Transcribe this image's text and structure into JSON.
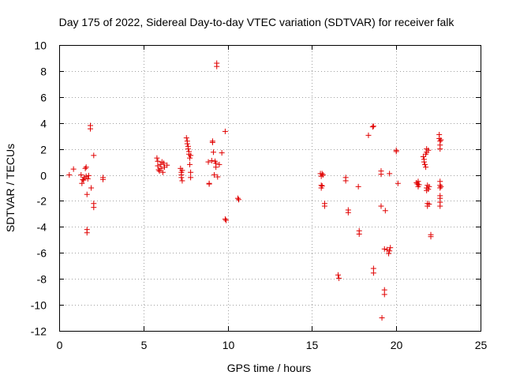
{
  "chart_data": {
    "type": "scatter",
    "title": "Day 175 of 2022, Sidereal Day-to-day VTEC variation (SDTVAR) for receiver falk",
    "xlabel": "GPS time / hours",
    "ylabel": "SDTVAR / TECUs",
    "xlim": [
      0,
      25
    ],
    "ylim": [
      -12,
      10
    ],
    "xticks": [
      0,
      5,
      10,
      15,
      20,
      25
    ],
    "yticks": [
      -12,
      -10,
      -8,
      -6,
      -4,
      -2,
      0,
      2,
      4,
      6,
      8,
      10
    ],
    "grid": true,
    "marker": "plus",
    "color": "#e00000",
    "series": [
      {
        "name": "SDTVAR",
        "points": [
          [
            0.6,
            0.0
          ],
          [
            0.85,
            0.45
          ],
          [
            1.3,
            0.0
          ],
          [
            1.35,
            -0.65
          ],
          [
            1.4,
            -0.35
          ],
          [
            1.45,
            -0.4
          ],
          [
            1.5,
            -0.2
          ],
          [
            1.55,
            0.5
          ],
          [
            1.6,
            -0.1
          ],
          [
            1.6,
            0.6
          ],
          [
            1.65,
            -1.5
          ],
          [
            1.65,
            -4.2
          ],
          [
            1.65,
            -4.45
          ],
          [
            1.7,
            -0.3
          ],
          [
            1.75,
            -0.05
          ],
          [
            1.85,
            3.8
          ],
          [
            1.85,
            3.55
          ],
          [
            1.9,
            -1.0
          ],
          [
            2.05,
            1.5
          ],
          [
            2.05,
            -2.2
          ],
          [
            2.05,
            -2.5
          ],
          [
            2.6,
            -0.2
          ],
          [
            2.6,
            -0.35
          ],
          [
            5.8,
            1.3
          ],
          [
            5.85,
            1.05
          ],
          [
            5.85,
            0.7
          ],
          [
            5.9,
            0.4
          ],
          [
            5.95,
            0.3
          ],
          [
            6.0,
            0.8
          ],
          [
            6.05,
            0.5
          ],
          [
            6.1,
            1.0
          ],
          [
            6.15,
            0.2
          ],
          [
            6.2,
            0.9
          ],
          [
            6.25,
            0.6
          ],
          [
            6.4,
            0.75
          ],
          [
            7.2,
            0.5
          ],
          [
            7.25,
            0.2
          ],
          [
            7.25,
            0.0
          ],
          [
            7.25,
            -0.2
          ],
          [
            7.3,
            -0.45
          ],
          [
            7.3,
            0.35
          ],
          [
            7.55,
            2.85
          ],
          [
            7.6,
            2.6
          ],
          [
            7.6,
            2.4
          ],
          [
            7.65,
            2.2
          ],
          [
            7.65,
            2.0
          ],
          [
            7.7,
            1.8
          ],
          [
            7.7,
            1.6
          ],
          [
            7.75,
            1.3
          ],
          [
            7.75,
            0.8
          ],
          [
            7.8,
            1.5
          ],
          [
            7.8,
            0.2
          ],
          [
            7.8,
            -0.2
          ],
          [
            8.85,
            1.0
          ],
          [
            8.9,
            -0.65
          ],
          [
            8.9,
            -0.7
          ],
          [
            9.05,
            1.1
          ],
          [
            9.1,
            2.5
          ],
          [
            9.1,
            2.6
          ],
          [
            9.15,
            1.75
          ],
          [
            9.2,
            0.0
          ],
          [
            9.25,
            1.05
          ],
          [
            9.3,
            0.9
          ],
          [
            9.3,
            0.6
          ],
          [
            9.35,
            8.6
          ],
          [
            9.35,
            8.35
          ],
          [
            9.4,
            -0.15
          ],
          [
            9.5,
            0.8
          ],
          [
            9.65,
            1.7
          ],
          [
            9.85,
            3.35
          ],
          [
            9.85,
            -3.4
          ],
          [
            9.9,
            -3.5
          ],
          [
            10.6,
            -1.8
          ],
          [
            10.65,
            -1.9
          ],
          [
            15.5,
            0.1
          ],
          [
            15.55,
            -0.1
          ],
          [
            15.55,
            -0.8
          ],
          [
            15.55,
            -1.0
          ],
          [
            15.6,
            0.1
          ],
          [
            15.6,
            -0.85
          ],
          [
            15.65,
            0.0
          ],
          [
            15.75,
            -2.2
          ],
          [
            15.75,
            -2.4
          ],
          [
            16.55,
            -7.7
          ],
          [
            16.6,
            -7.95
          ],
          [
            17.0,
            -0.2
          ],
          [
            17.0,
            -0.45
          ],
          [
            17.15,
            -2.7
          ],
          [
            17.15,
            -2.9
          ],
          [
            17.75,
            -0.9
          ],
          [
            17.8,
            -4.3
          ],
          [
            17.8,
            -4.55
          ],
          [
            18.35,
            3.05
          ],
          [
            18.6,
            3.7
          ],
          [
            18.65,
            3.75
          ],
          [
            18.65,
            -7.2
          ],
          [
            18.65,
            -7.55
          ],
          [
            19.1,
            0.3
          ],
          [
            19.1,
            0.05
          ],
          [
            19.1,
            -2.4
          ],
          [
            19.15,
            -11.0
          ],
          [
            19.3,
            -5.7
          ],
          [
            19.3,
            -8.85
          ],
          [
            19.3,
            -9.2
          ],
          [
            19.35,
            -2.75
          ],
          [
            19.45,
            -5.75
          ],
          [
            19.55,
            -6.05
          ],
          [
            19.6,
            0.1
          ],
          [
            19.6,
            -5.85
          ],
          [
            19.65,
            -5.6
          ],
          [
            20.0,
            1.9
          ],
          [
            20.0,
            1.8
          ],
          [
            20.1,
            -0.65
          ],
          [
            21.2,
            -0.6
          ],
          [
            21.25,
            -0.7
          ],
          [
            21.3,
            -0.9
          ],
          [
            21.3,
            -0.5
          ],
          [
            21.35,
            -0.75
          ],
          [
            21.6,
            1.4
          ],
          [
            21.65,
            1.2
          ],
          [
            21.65,
            1.0
          ],
          [
            21.7,
            0.8
          ],
          [
            21.75,
            1.6
          ],
          [
            21.75,
            0.6
          ],
          [
            21.8,
            1.75
          ],
          [
            21.8,
            2.0
          ],
          [
            21.8,
            -1.0
          ],
          [
            21.8,
            -1.2
          ],
          [
            21.85,
            -0.8
          ],
          [
            21.85,
            -2.2
          ],
          [
            21.85,
            -2.4
          ],
          [
            21.9,
            1.9
          ],
          [
            21.9,
            -1.1
          ],
          [
            21.95,
            -0.9
          ],
          [
            21.95,
            -2.25
          ],
          [
            22.05,
            -4.6
          ],
          [
            22.05,
            -4.75
          ],
          [
            22.55,
            3.1
          ],
          [
            22.55,
            2.8
          ],
          [
            22.6,
            2.6
          ],
          [
            22.6,
            2.3
          ],
          [
            22.6,
            2.0
          ],
          [
            22.6,
            -0.5
          ],
          [
            22.6,
            -0.8
          ],
          [
            22.6,
            -1.0
          ],
          [
            22.6,
            -1.6
          ],
          [
            22.6,
            -1.8
          ],
          [
            22.6,
            -2.1
          ],
          [
            22.6,
            -2.4
          ],
          [
            22.65,
            2.7
          ],
          [
            22.65,
            -0.9
          ]
        ]
      }
    ]
  }
}
